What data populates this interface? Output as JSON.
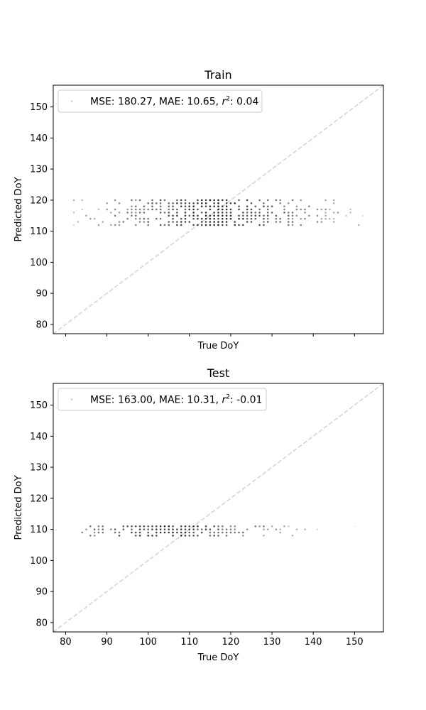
{
  "chart_data": [
    {
      "type": "scatter",
      "title": "Train",
      "xlabel": "True DoY",
      "ylabel": "Predicted DoY",
      "xlim": [
        77,
        157
      ],
      "ylim": [
        77,
        157
      ],
      "x_ticks": [
        80,
        90,
        100,
        110,
        120,
        130,
        140,
        150
      ],
      "x_tick_labels_shown": false,
      "y_ticks": [
        80,
        90,
        100,
        110,
        120,
        130,
        140,
        150
      ],
      "diagonal": {
        "from": 77,
        "to": 157,
        "color": "#d3d3d3",
        "style": "dashed"
      },
      "legend": {
        "placement": "upper-left",
        "text": "MSE: 180.27, MAE: 10.65, r²: 0.04",
        "prefix": "MSE: 180.27, MAE: 10.65, ",
        "r_symbol": "r",
        "r_sup": "2",
        "suffix": ": 0.04"
      },
      "point_color": "#000000",
      "x_range": [
        82,
        152
      ],
      "y_levels": [
        112,
        113,
        114,
        115,
        116,
        117,
        118,
        119,
        120
      ],
      "x_center": 116,
      "y_center": 116
    },
    {
      "type": "scatter",
      "title": "Test",
      "xlabel": "True DoY",
      "ylabel": "Predicted DoY",
      "xlim": [
        77,
        157
      ],
      "ylim": [
        77,
        157
      ],
      "x_ticks": [
        80,
        90,
        100,
        110,
        120,
        130,
        140,
        150
      ],
      "x_tick_labels_shown": true,
      "y_ticks": [
        80,
        90,
        100,
        110,
        120,
        130,
        140,
        150
      ],
      "diagonal": {
        "from": 77,
        "to": 157,
        "color": "#d3d3d3",
        "style": "dashed"
      },
      "legend": {
        "placement": "upper-left",
        "text": "MSE: 163.00, MAE: 10.31, r²: -0.01",
        "prefix": "MSE: 163.00, MAE: 10.31, ",
        "r_symbol": "r",
        "r_sup": "2",
        "suffix": ": -0.01"
      },
      "point_color": "#000000",
      "x_range": [
        84,
        151
      ],
      "y_levels": [
        108,
        109,
        110,
        111
      ],
      "x_center": 105,
      "y_center": 110
    }
  ]
}
